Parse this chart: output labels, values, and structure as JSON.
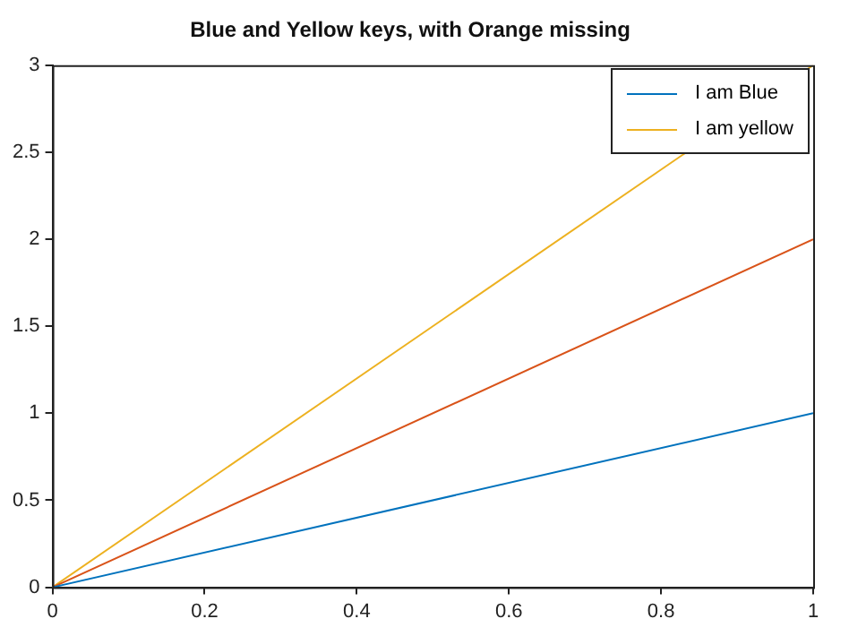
{
  "chart_data": {
    "type": "line",
    "title": "Blue and Yellow keys, with Orange missing",
    "x": [
      0,
      1
    ],
    "series": [
      {
        "name": "I am Blue",
        "color": "#0072bd",
        "values": [
          0,
          1
        ]
      },
      {
        "color": "#d95319",
        "values": [
          0,
          2
        ]
      },
      {
        "name": "I am yellow",
        "color": "#edb120",
        "values": [
          0,
          3
        ]
      }
    ],
    "xlim": [
      0,
      1
    ],
    "xticks": [
      0,
      0.2,
      0.4,
      0.6,
      0.8,
      1
    ],
    "ylim": [
      0,
      3
    ],
    "yticks": [
      0,
      0.5,
      1,
      1.5,
      2,
      2.5,
      3
    ],
    "grid": false,
    "legend": "top right",
    "marker": "none",
    "line_style": "solid"
  }
}
